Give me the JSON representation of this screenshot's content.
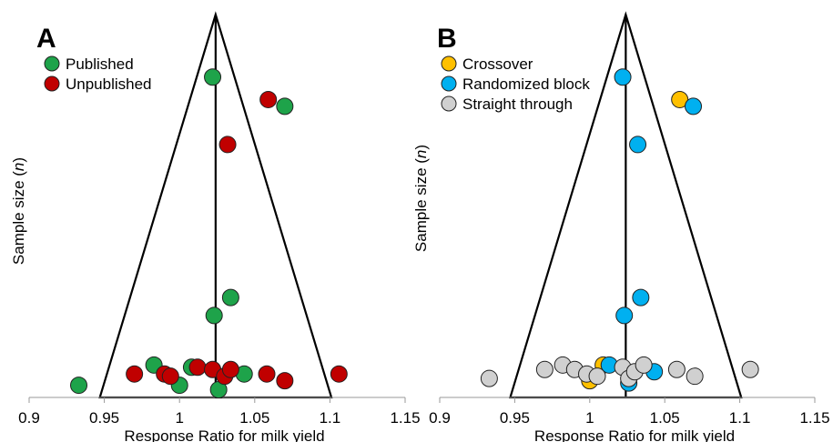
{
  "chart_data": [
    {
      "type": "scatter",
      "panel_label": "A",
      "xlabel": "Response Ratio for milk yield",
      "ylabel_prefix": "Sample size (",
      "ylabel_italic": "n",
      "ylabel_suffix": ")",
      "xlim": [
        0.9,
        1.15
      ],
      "x_ticks": [
        "0.9",
        "0.95",
        "1",
        "1.05",
        "1.1",
        "1.15"
      ],
      "y_tick_labels": false,
      "grid": false,
      "legend_position": "top-left",
      "funnel": {
        "center_x": 1.024,
        "base_left_x": 0.947,
        "base_right_x": 1.101
      },
      "series": [
        {
          "name": "Published",
          "color": "#1ea34a",
          "points": [
            {
              "x": 0.933,
              "y": 0.03
            },
            {
              "x": 0.983,
              "y": 0.12
            },
            {
              "x": 1.0,
              "y": 0.03
            },
            {
              "x": 1.008,
              "y": 0.11
            },
            {
              "x": 1.026,
              "y": 0.01
            },
            {
              "x": 1.043,
              "y": 0.08
            },
            {
              "x": 1.023,
              "y": 0.34
            },
            {
              "x": 1.034,
              "y": 0.42
            },
            {
              "x": 1.022,
              "y": 1.4
            },
            {
              "x": 1.07,
              "y": 1.27
            }
          ]
        },
        {
          "name": "Unpublished",
          "color": "#c00000",
          "points": [
            {
              "x": 0.97,
              "y": 0.08
            },
            {
              "x": 0.99,
              "y": 0.08
            },
            {
              "x": 0.994,
              "y": 0.07
            },
            {
              "x": 1.012,
              "y": 0.11
            },
            {
              "x": 1.022,
              "y": 0.1
            },
            {
              "x": 1.03,
              "y": 0.07
            },
            {
              "x": 1.034,
              "y": 0.1
            },
            {
              "x": 1.058,
              "y": 0.08
            },
            {
              "x": 1.07,
              "y": 0.05
            },
            {
              "x": 1.106,
              "y": 0.08
            },
            {
              "x": 1.032,
              "y": 1.1
            },
            {
              "x": 1.059,
              "y": 1.3
            }
          ]
        }
      ]
    },
    {
      "type": "scatter",
      "panel_label": "B",
      "xlabel": "Response Ratio for milk yield",
      "ylabel_prefix": "Sample size (",
      "ylabel_italic": "n",
      "ylabel_suffix": ")",
      "xlim": [
        0.9,
        1.15
      ],
      "x_ticks": [
        "0.9",
        "0.95",
        "1",
        "1.05",
        "1.1",
        "1.15"
      ],
      "y_tick_labels": false,
      "grid": false,
      "legend_position": "top-left",
      "funnel": {
        "center_x": 1.024,
        "base_left_x": 0.947,
        "base_right_x": 1.101
      },
      "series": [
        {
          "name": "Crossover",
          "color": "#ffc000",
          "points": [
            {
              "x": 1.0,
              "y": 0.05
            },
            {
              "x": 1.009,
              "y": 0.12
            },
            {
              "x": 1.06,
              "y": 1.3
            }
          ]
        },
        {
          "name": "Randomized block",
          "color": "#00b0f0",
          "points": [
            {
              "x": 1.013,
              "y": 0.12
            },
            {
              "x": 1.026,
              "y": 0.04
            },
            {
              "x": 1.043,
              "y": 0.09
            },
            {
              "x": 1.023,
              "y": 0.34
            },
            {
              "x": 1.034,
              "y": 0.42
            },
            {
              "x": 1.022,
              "y": 1.4
            },
            {
              "x": 1.032,
              "y": 1.1
            },
            {
              "x": 1.069,
              "y": 1.27
            }
          ]
        },
        {
          "name": "Straight through",
          "color": "#d0d0d0",
          "points": [
            {
              "x": 0.933,
              "y": 0.06
            },
            {
              "x": 0.97,
              "y": 0.1
            },
            {
              "x": 0.982,
              "y": 0.12
            },
            {
              "x": 0.99,
              "y": 0.1
            },
            {
              "x": 0.998,
              "y": 0.08
            },
            {
              "x": 1.005,
              "y": 0.07
            },
            {
              "x": 1.022,
              "y": 0.11
            },
            {
              "x": 1.026,
              "y": 0.06
            },
            {
              "x": 1.03,
              "y": 0.09
            },
            {
              "x": 1.036,
              "y": 0.12
            },
            {
              "x": 1.058,
              "y": 0.1
            },
            {
              "x": 1.07,
              "y": 0.07
            },
            {
              "x": 1.107,
              "y": 0.1
            }
          ]
        }
      ]
    }
  ]
}
